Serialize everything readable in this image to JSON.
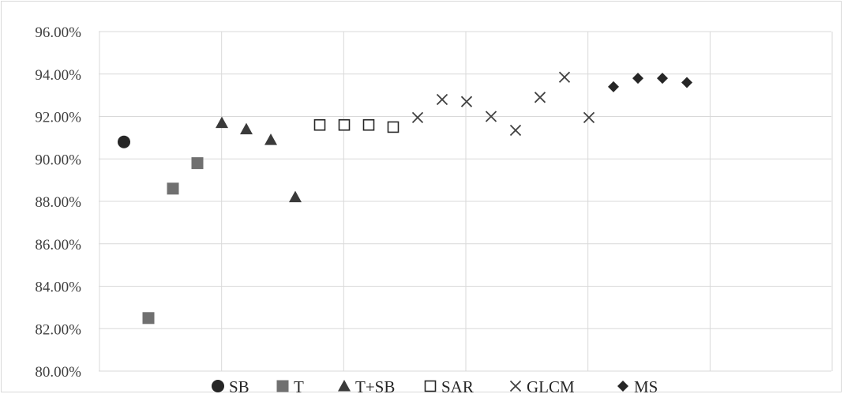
{
  "chart_data": {
    "type": "scatter",
    "title": "",
    "xlabel": "",
    "ylabel": "",
    "ylim": [
      80,
      96
    ],
    "y_ticks": [
      "80.00%",
      "82.00%",
      "84.00%",
      "86.00%",
      "88.00%",
      "90.00%",
      "92.00%",
      "94.00%",
      "96.00%"
    ],
    "xlim": [
      0,
      30
    ],
    "grid": {
      "horizontal": true,
      "vertical": true
    },
    "legend_position": "bottom",
    "series": [
      {
        "name": "SB",
        "marker": "circle",
        "color": "#262626",
        "x": [
          1
        ],
        "values": [
          90.8
        ]
      },
      {
        "name": "T",
        "marker": "square",
        "color": "#707070",
        "x": [
          2,
          3,
          4
        ],
        "values": [
          82.5,
          88.6,
          89.8
        ]
      },
      {
        "name": "T+SB",
        "marker": "triangle",
        "color": "#3a3a3a",
        "x": [
          5,
          6,
          7,
          8
        ],
        "values": [
          91.7,
          91.4,
          90.9,
          88.2
        ]
      },
      {
        "name": "SAR",
        "marker": "square-open",
        "color": "#262626",
        "x": [
          9,
          10,
          11,
          12
        ],
        "values": [
          91.6,
          91.6,
          91.6,
          91.5
        ]
      },
      {
        "name": "GLCM",
        "marker": "x",
        "color": "#404040",
        "x": [
          13,
          14,
          15,
          16,
          17,
          18,
          19,
          20
        ],
        "values": [
          91.95,
          92.8,
          92.7,
          92.0,
          91.35,
          92.9,
          93.85,
          91.95
        ]
      },
      {
        "name": "MS",
        "marker": "diamond",
        "color": "#262626",
        "x": [
          21,
          22,
          23,
          24
        ],
        "values": [
          93.4,
          93.8,
          93.8,
          93.6
        ]
      }
    ]
  }
}
